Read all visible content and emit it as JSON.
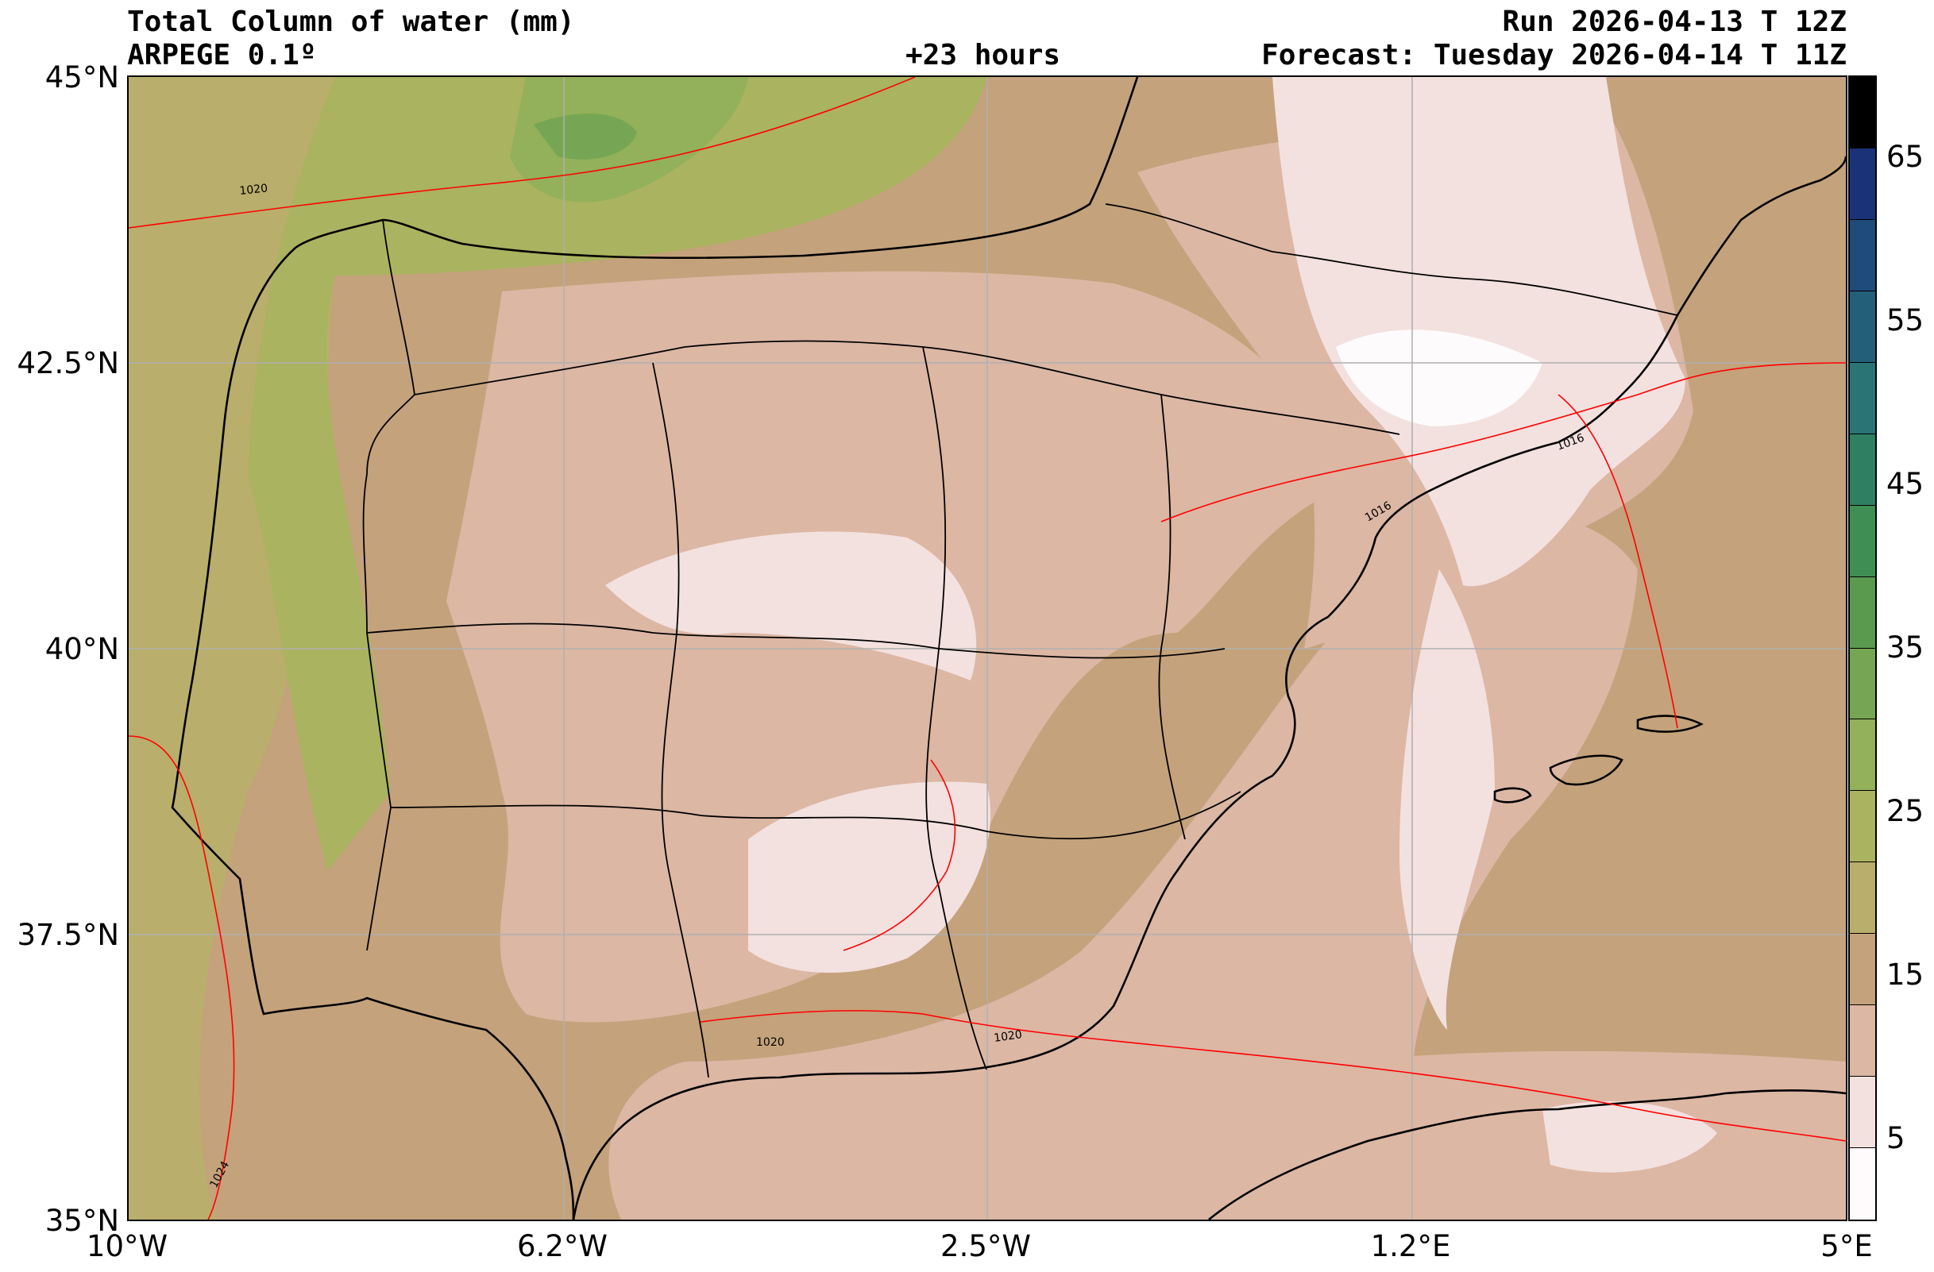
{
  "header": {
    "title": "Total Column of water (mm)",
    "model": "ARPEGE 0.1º",
    "lead": "+23 hours",
    "run": "Run 2026-04-13 T 12Z",
    "forecast": "Forecast: Tuesday 2026-04-14 T 11Z"
  },
  "axes": {
    "lat_ticks": [
      "45°N",
      "42.5°N",
      "40°N",
      "37.5°N",
      "35°N"
    ],
    "lon_ticks": [
      "10°W",
      "6.2°W",
      "2.5°W",
      "1.2°E",
      "5°E"
    ]
  },
  "colorbar": {
    "ticks": [
      "65",
      "55",
      "45",
      "35",
      "25",
      "15",
      "5"
    ],
    "colors": [
      "#fdfbfb",
      "#f3e1df",
      "#dcb7a4",
      "#c4a27b",
      "#b9ae6b",
      "#aab35f",
      "#93b05a",
      "#76a653",
      "#5a9a4e",
      "#3f8f54",
      "#2f7f63",
      "#2a7476",
      "#245f79",
      "#1f4b7a",
      "#1a3277",
      "#000000"
    ]
  },
  "contours": {
    "labels": [
      "1020",
      "1024",
      "1016",
      "1016",
      "1020",
      "1020"
    ]
  },
  "colors": {
    "sea_west": "#b9ae6b",
    "atlantic_north": "#aab35f",
    "land_low": "#dcb7a4",
    "land_dry": "#f3e1df",
    "land_mid": "#c4a27b",
    "isobar": "#ff0000",
    "coast": "#000000",
    "grid": "#b0b0b0"
  }
}
